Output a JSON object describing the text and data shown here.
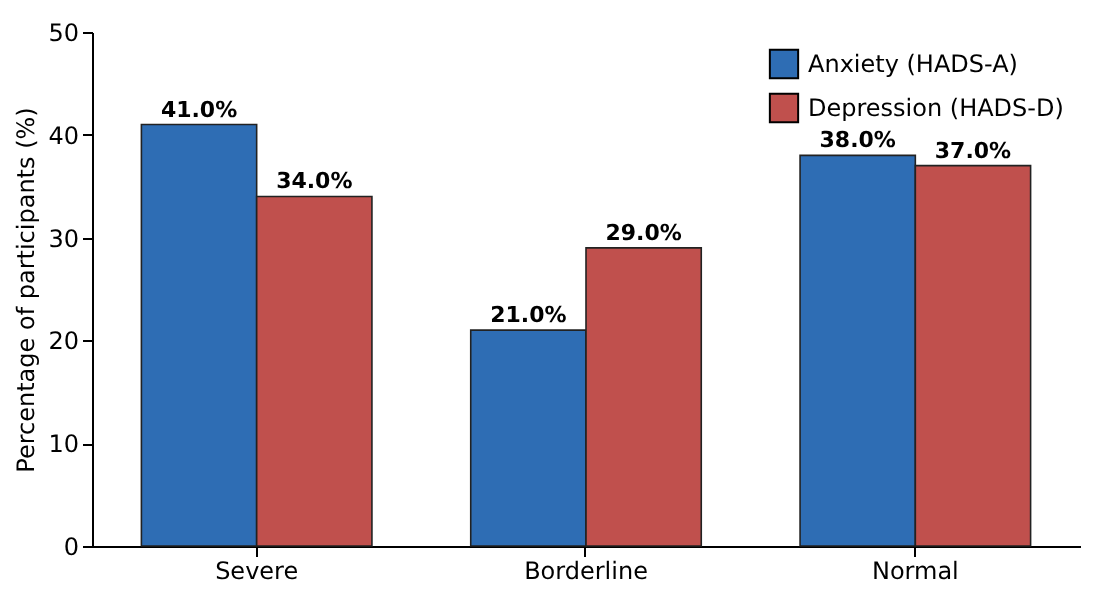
{
  "chart_data": {
    "type": "bar",
    "ylabel": "Percentage of participants (%)",
    "categories": [
      "Severe",
      "Borderline",
      "Normal"
    ],
    "series": [
      {
        "name": "Anxiety (HADS-A)",
        "color": "#2e6db4",
        "values": [
          41.0,
          21.0,
          38.0
        ],
        "value_labels": [
          "41.0%",
          "21.0%",
          "38.0%"
        ]
      },
      {
        "name": "Depression (HADS-D)",
        "color": "#c0504d",
        "values": [
          34.0,
          29.0,
          37.0
        ],
        "value_labels": [
          "34.0%",
          "29.0%",
          "37.0%"
        ]
      }
    ],
    "ylim": [
      0,
      50
    ],
    "yticks": [
      0,
      10,
      20,
      30,
      40,
      50
    ],
    "grid": false,
    "legend": "top right"
  }
}
